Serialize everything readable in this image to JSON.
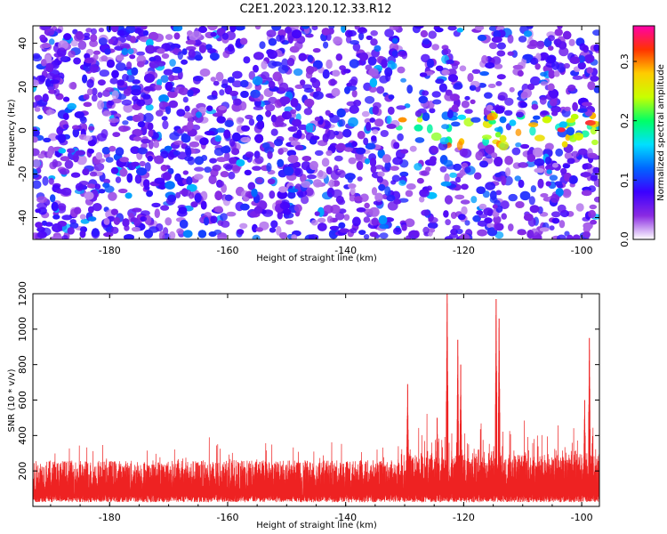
{
  "title": "C2E1.2023.120.12.33.R12",
  "chart_data": [
    {
      "type": "heatmap",
      "title": "C2E1.2023.120.12.33.R12",
      "xlabel": "Height of straight line (km)",
      "ylabel": "Frequency (Hz)",
      "xlim": [
        -193,
        -97
      ],
      "ylim": [
        -50,
        48
      ],
      "x_ticks": [
        -180,
        -160,
        -140,
        -120,
        -100
      ],
      "y_ticks": [
        -40,
        -20,
        0,
        20,
        40
      ],
      "colorbar": {
        "label": "Normalized spectral amplitude",
        "range": [
          0.0,
          0.36
        ],
        "ticks": [
          0.0,
          0.1,
          0.2,
          0.3
        ],
        "tick_labels": [
          "0.0",
          "0.1",
          "0.2",
          "0.3"
        ],
        "colormap": [
          "#ffffff",
          "#8a2be2",
          "#3b00ff",
          "#0066ff",
          "#00e0ff",
          "#00ff66",
          "#c8ff00",
          "#ffcc00",
          "#ff3300",
          "#ff00aa"
        ]
      },
      "features": [
        {
          "x_range": [
            -193,
            -130
          ],
          "amplitude": "low",
          "level": 0.05
        },
        {
          "x_range": [
            -130,
            -97
          ],
          "frequency_center": 0,
          "amplitude": "elevated",
          "level": 0.18,
          "peak": 0.32
        }
      ]
    },
    {
      "type": "line",
      "xlabel": "Height of straight line (km)",
      "ylabel": "SNR (10 * v/v)",
      "xlim": [
        -193,
        -97
      ],
      "ylim": [
        0,
        1200
      ],
      "x_ticks": [
        -180,
        -160,
        -140,
        -120,
        -100
      ],
      "y_ticks": [
        200,
        400,
        600,
        800,
        1000,
        1200
      ],
      "color": "#ee2222",
      "baseline_band": [
        60,
        260
      ],
      "spikes": [
        {
          "x": -129.5,
          "y": 690
        },
        {
          "x": -124.5,
          "y": 500
        },
        {
          "x": -122.8,
          "y": 1200
        },
        {
          "x": -121.0,
          "y": 940
        },
        {
          "x": -120.5,
          "y": 800
        },
        {
          "x": -114.5,
          "y": 1170
        },
        {
          "x": -114.0,
          "y": 1060
        },
        {
          "x": -98.7,
          "y": 950
        },
        {
          "x": -99.5,
          "y": 600
        }
      ]
    }
  ]
}
